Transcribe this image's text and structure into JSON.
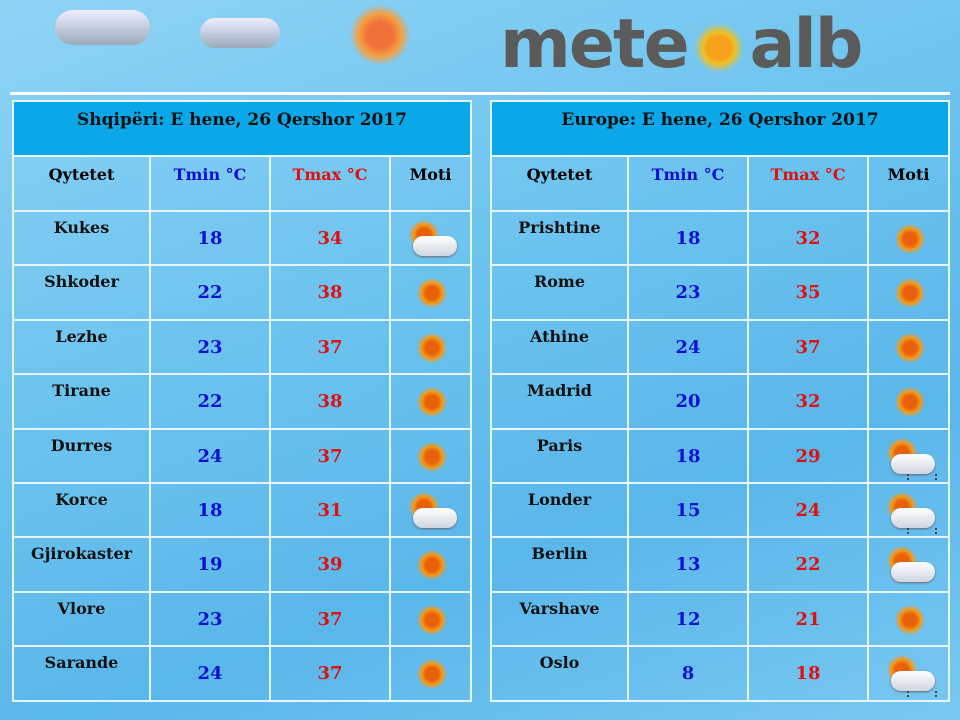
{
  "logo": {
    "text_left": "mete",
    "text_right": "alb"
  },
  "columns": {
    "city": "Qytetet",
    "tmin": "Tmin °C",
    "tmax": "Tmax °C",
    "weather": "Moti"
  },
  "albania": {
    "title": "Shqipëri: E hene, 26 Qershor 2017",
    "rows": [
      {
        "city": "Kukes",
        "tmin": "18",
        "tmax": "34",
        "icon": "partly-cloudy"
      },
      {
        "city": "Shkoder",
        "tmin": "22",
        "tmax": "38",
        "icon": "sun"
      },
      {
        "city": "Lezhe",
        "tmin": "23",
        "tmax": "37",
        "icon": "sun"
      },
      {
        "city": "Tirane",
        "tmin": "22",
        "tmax": "38",
        "icon": "sun"
      },
      {
        "city": "Durres",
        "tmin": "24",
        "tmax": "37",
        "icon": "sun"
      },
      {
        "city": "Korce",
        "tmin": "18",
        "tmax": "31",
        "icon": "partly-cloudy"
      },
      {
        "city": "Gjirokaster",
        "tmin": "19",
        "tmax": "39",
        "icon": "sun"
      },
      {
        "city": "Vlore",
        "tmin": "23",
        "tmax": "37",
        "icon": "sun"
      },
      {
        "city": "Sarande",
        "tmin": "24",
        "tmax": "37",
        "icon": "sun"
      }
    ]
  },
  "europe": {
    "title": "Europe: E hene, 26 Qershor 2017",
    "rows": [
      {
        "city": "Prishtine",
        "tmin": "18",
        "tmax": "32",
        "icon": "sun"
      },
      {
        "city": "Rome",
        "tmin": "23",
        "tmax": "35",
        "icon": "sun"
      },
      {
        "city": "Athine",
        "tmin": "24",
        "tmax": "37",
        "icon": "sun"
      },
      {
        "city": "Madrid",
        "tmin": "20",
        "tmax": "32",
        "icon": "sun"
      },
      {
        "city": "Paris",
        "tmin": "18",
        "tmax": "29",
        "icon": "partly-cloudy-rain"
      },
      {
        "city": "Londer",
        "tmin": "15",
        "tmax": "24",
        "icon": "partly-cloudy-rain"
      },
      {
        "city": "Berlin",
        "tmin": "13",
        "tmax": "22",
        "icon": "partly-cloudy"
      },
      {
        "city": "Varshave",
        "tmin": "12",
        "tmax": "21",
        "icon": "sun"
      },
      {
        "city": "Oslo",
        "tmin": "8",
        "tmax": "18",
        "icon": "partly-cloudy-rain"
      }
    ]
  },
  "colors": {
    "header": "#0aa8e8",
    "tmin": "#1010d0",
    "tmax": "#e01010",
    "logo": "#5b5b5b"
  }
}
